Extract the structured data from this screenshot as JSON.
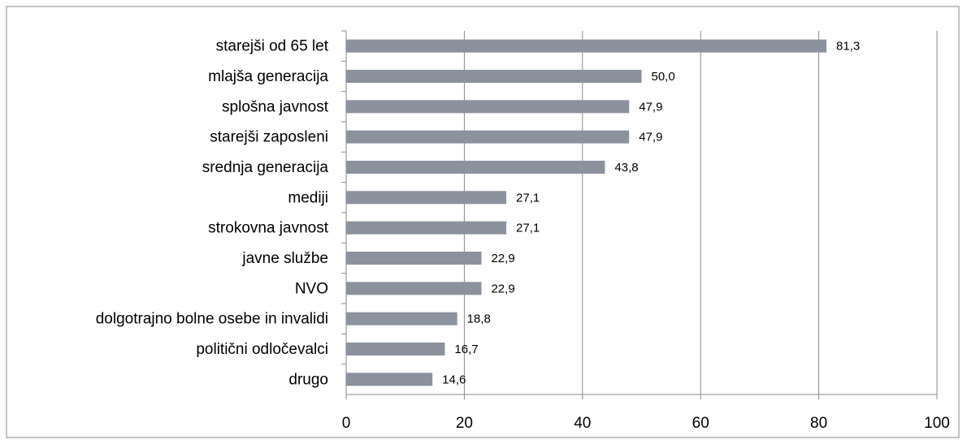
{
  "chart_data": {
    "type": "bar",
    "orientation": "horizontal",
    "categories": [
      "starejši od 65 let",
      "mlajša generacija",
      "splošna javnost",
      "starejši zaposleni",
      "srednja generacija",
      "mediji",
      "strokovna javnost",
      "javne službe",
      "NVO",
      "dolgotrajno bolne osebe in invalidi",
      "politični odločevalci",
      "drugo"
    ],
    "values": [
      81.3,
      50.0,
      47.9,
      47.9,
      43.8,
      27.1,
      27.1,
      22.9,
      22.9,
      18.8,
      16.7,
      14.6
    ],
    "value_labels": [
      "81,3",
      "50,0",
      "47,9",
      "47,9",
      "43,8",
      "27,1",
      "27,1",
      "22,9",
      "22,9",
      "18,8",
      "16,7",
      "14,6"
    ],
    "color": "#8b929d",
    "xlim": [
      0,
      100
    ],
    "xticks": [
      0,
      20,
      40,
      60,
      80,
      100
    ],
    "grid": true
  }
}
